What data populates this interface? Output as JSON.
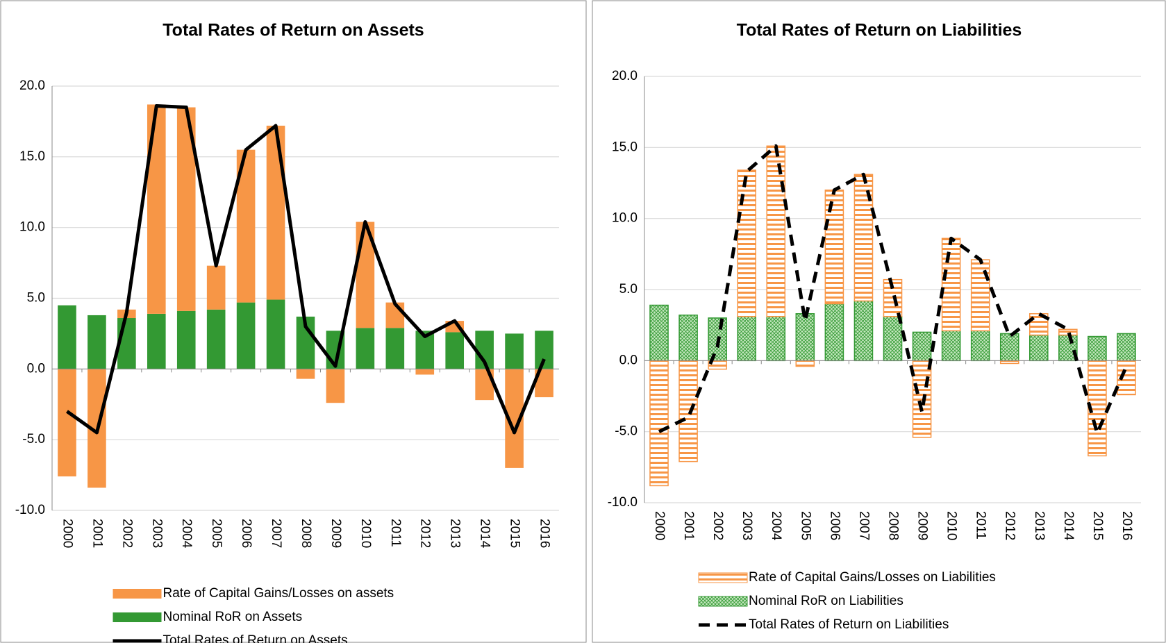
{
  "chart_data": [
    {
      "type": "bar",
      "title": "Total Rates of Return on Assets",
      "categories": [
        "2000",
        "2001",
        "2002",
        "2003",
        "2004",
        "2005",
        "2006",
        "2007",
        "2008",
        "2009",
        "2010",
        "2011",
        "2012",
        "2013",
        "2014",
        "2015",
        "2016"
      ],
      "series": [
        {
          "name": "Rate of Capital Gains/Losses on assets",
          "type": "bar",
          "color": "#f79646",
          "values": [
            -7.6,
            -8.4,
            0.6,
            14.8,
            14.4,
            3.1,
            10.8,
            12.3,
            -0.7,
            -2.4,
            7.5,
            1.8,
            -0.4,
            0.8,
            -2.2,
            -7.0,
            -2.0
          ]
        },
        {
          "name": "Nominal RoR on Assets",
          "type": "bar",
          "color": "#339933",
          "values": [
            4.5,
            3.8,
            3.6,
            3.9,
            4.1,
            4.2,
            4.7,
            4.9,
            3.7,
            2.7,
            2.9,
            2.9,
            2.7,
            2.6,
            2.7,
            2.5,
            2.7
          ]
        },
        {
          "name": "Total Rates of Return on Assets",
          "type": "line",
          "color": "#000000",
          "values": [
            -3.0,
            -4.5,
            4.0,
            18.6,
            18.5,
            7.3,
            15.5,
            17.2,
            3.0,
            0.2,
            10.4,
            4.6,
            2.3,
            3.4,
            0.5,
            -4.5,
            0.7
          ]
        }
      ],
      "ylim": [
        -10,
        20
      ],
      "yticks": [
        {
          "value": -10,
          "label": "-10.0"
        },
        {
          "value": -5,
          "label": "-5.0"
        },
        {
          "value": 0,
          "label": "0.0"
        },
        {
          "value": 5,
          "label": "5.0"
        },
        {
          "value": 10,
          "label": "10.0"
        },
        {
          "value": 15,
          "label": "15.0"
        },
        {
          "value": 20,
          "label": "20.0"
        }
      ],
      "grid": true,
      "legend": "bottom"
    },
    {
      "type": "bar",
      "title": "Total Rates of Return on Liabilities",
      "categories": [
        "2000",
        "2001",
        "2002",
        "2003",
        "2004",
        "2005",
        "2006",
        "2007",
        "2008",
        "2009",
        "2010",
        "2011",
        "2012",
        "2013",
        "2014",
        "2015",
        "2016"
      ],
      "series": [
        {
          "name": "Rate of Capital Gains/Losses on Liabilities",
          "type": "bar",
          "color": "#f79646",
          "pattern": "horizontal-stripes",
          "values": [
            -8.8,
            -7.1,
            -0.6,
            10.3,
            12.0,
            -0.4,
            8.0,
            8.9,
            2.6,
            -5.4,
            6.5,
            5.0,
            -0.2,
            1.5,
            0.4,
            -6.7,
            -2.4
          ]
        },
        {
          "name": "Nominal RoR on Liabilities",
          "type": "bar",
          "color": "#339933",
          "pattern": "crosshatch",
          "values": [
            3.9,
            3.2,
            3.0,
            3.1,
            3.1,
            3.3,
            4.0,
            4.2,
            3.1,
            2.0,
            2.1,
            2.1,
            1.9,
            1.8,
            1.8,
            1.7,
            1.9
          ]
        },
        {
          "name": "Total Rates of Return on Liabilities",
          "type": "line",
          "color": "#000000",
          "dashed": true,
          "values": [
            -5.0,
            -4.0,
            1.0,
            13.3,
            15.1,
            2.8,
            12.0,
            13.1,
            5.0,
            -3.6,
            8.6,
            7.1,
            1.7,
            3.3,
            2.2,
            -5.1,
            -0.4
          ]
        }
      ],
      "ylim": [
        -10,
        20
      ],
      "yticks": [
        {
          "value": -10,
          "label": "-10.0"
        },
        {
          "value": -5,
          "label": "-5.0"
        },
        {
          "value": 0,
          "label": "0.0"
        },
        {
          "value": 5,
          "label": "5.0"
        },
        {
          "value": 10,
          "label": "10.0"
        },
        {
          "value": 15,
          "label": "15.0"
        },
        {
          "value": 20,
          "label": "20.0"
        }
      ],
      "grid": true,
      "legend": "bottom"
    }
  ]
}
